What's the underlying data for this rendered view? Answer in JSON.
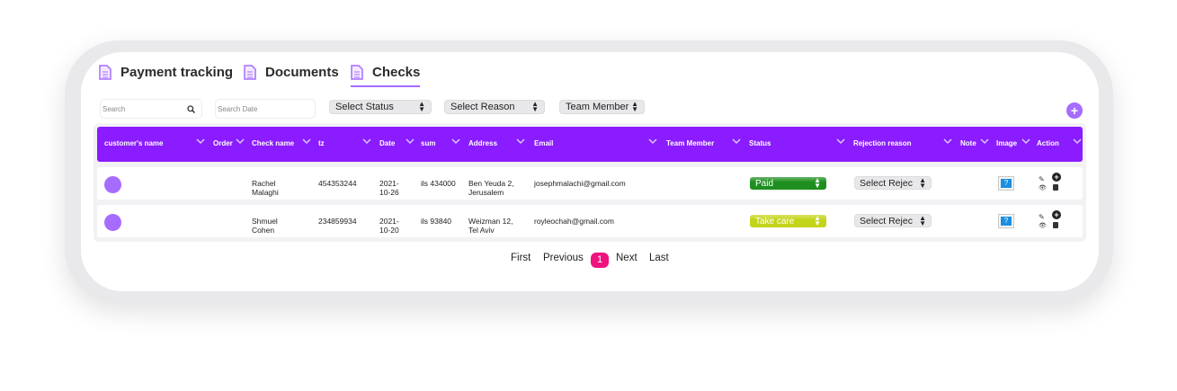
{
  "tabs": [
    {
      "label": "Payment tracking",
      "icon": "document-icon"
    },
    {
      "label": "Documents",
      "icon": "document-icon"
    },
    {
      "label": "Checks",
      "icon": "document-icon",
      "active": true
    }
  ],
  "filters": {
    "search_placeholder": "Search",
    "date_placeholder": "Search Date",
    "status": "Select Status",
    "reason": "Select Reason",
    "team": "Team Member"
  },
  "columns": [
    "customer's name",
    "Order",
    "Check name",
    "tz",
    "Date",
    "sum",
    "Address",
    "Email",
    "Team Member",
    "Status",
    "Rejection reason",
    "Note",
    "Image",
    "Action"
  ],
  "rows": [
    {
      "check_name": "Rachel Malaghi",
      "tz": "454353244",
      "date": "2021-10-26",
      "sum": "ils 434000",
      "address": "Ben Yeuda 2, Jerusalem",
      "email": "josephmalachi@gmail.com",
      "status": "Paid",
      "status_color": "#1e8f1e",
      "rejection": "Select Rejec"
    },
    {
      "check_name": "Shmuel Cohen",
      "tz": "234859934",
      "date": "2021-10-20",
      "sum": "ils 93840",
      "address": "Weizman 12, Tel Aviv",
      "email": "royleochah@gmail.com",
      "status": "Take care",
      "status_color": "#c4d41a",
      "rejection": "Select Rejec"
    }
  ],
  "pagination": {
    "first": "First",
    "previous": "Previous",
    "current": "1",
    "next": "Next",
    "last": "Last"
  },
  "colors": {
    "accent": "#8a1cff",
    "avatar": "#a66cff",
    "page_active": "#f0127f"
  }
}
